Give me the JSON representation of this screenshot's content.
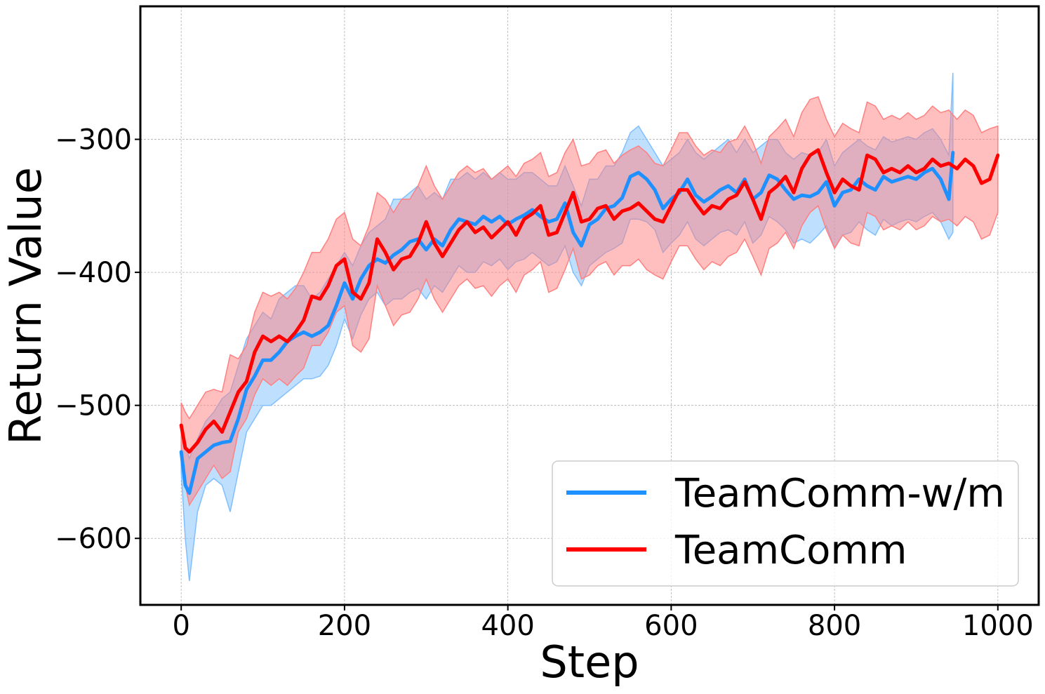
{
  "chart_data": {
    "type": "line",
    "title": "",
    "xlabel": "Step",
    "ylabel": "Return Value",
    "xlim": [
      -50,
      1050
    ],
    "ylim": [
      -650,
      -200
    ],
    "x_ticks": [
      0,
      200,
      400,
      600,
      800,
      1000
    ],
    "x_tick_labels": [
      "0",
      "200",
      "400",
      "600",
      "800",
      "1000"
    ],
    "y_ticks": [
      -600,
      -500,
      -400,
      -300
    ],
    "y_tick_labels": [
      "−600",
      "−500",
      "−400",
      "−300"
    ],
    "grid": true,
    "legend_position": "lower-right",
    "series": [
      {
        "name": "TeamComm-w/m",
        "color": "#1e90ff",
        "band_color": "#7fbfff",
        "x": [
          0,
          5,
          10,
          20,
          30,
          40,
          50,
          60,
          70,
          80,
          90,
          100,
          110,
          120,
          130,
          140,
          150,
          160,
          170,
          180,
          190,
          200,
          210,
          220,
          230,
          240,
          250,
          260,
          270,
          280,
          290,
          300,
          310,
          320,
          330,
          340,
          350,
          360,
          370,
          380,
          390,
          400,
          410,
          420,
          430,
          440,
          450,
          460,
          470,
          480,
          490,
          500,
          510,
          520,
          530,
          540,
          550,
          560,
          570,
          580,
          590,
          600,
          610,
          620,
          630,
          640,
          650,
          660,
          670,
          680,
          690,
          700,
          710,
          720,
          730,
          740,
          750,
          760,
          770,
          780,
          790,
          800,
          810,
          820,
          830,
          840,
          850,
          860,
          870,
          880,
          890,
          900,
          910,
          920,
          930,
          940,
          945
        ],
        "mean": [
          -535,
          -560,
          -566,
          -540,
          -535,
          -530,
          -528,
          -527,
          -510,
          -488,
          -478,
          -466,
          -466,
          -460,
          -452,
          -448,
          -445,
          -448,
          -445,
          -440,
          -425,
          -408,
          -420,
          -405,
          -395,
          -390,
          -393,
          -387,
          -383,
          -377,
          -375,
          -383,
          -375,
          -380,
          -368,
          -360,
          -362,
          -364,
          -358,
          -362,
          -358,
          -364,
          -360,
          -357,
          -353,
          -358,
          -362,
          -360,
          -348,
          -370,
          -380,
          -364,
          -360,
          -352,
          -350,
          -344,
          -328,
          -325,
          -330,
          -338,
          -352,
          -345,
          -340,
          -330,
          -342,
          -347,
          -343,
          -338,
          -335,
          -340,
          -330,
          -345,
          -340,
          -327,
          -330,
          -338,
          -345,
          -342,
          -343,
          -340,
          -332,
          -350,
          -340,
          -338,
          -330,
          -335,
          -338,
          -328,
          -332,
          -330,
          -328,
          -330,
          -325,
          -322,
          -330,
          -345,
          -310
        ],
        "upper": [
          -520,
          -530,
          -540,
          -525,
          -512,
          -505,
          -495,
          -490,
          -470,
          -450,
          -440,
          -430,
          -435,
          -420,
          -415,
          -410,
          -410,
          -420,
          -415,
          -405,
          -395,
          -385,
          -395,
          -380,
          -370,
          -365,
          -360,
          -345,
          -345,
          -340,
          -335,
          -345,
          -340,
          -345,
          -330,
          -330,
          -325,
          -330,
          -325,
          -330,
          -325,
          -330,
          -330,
          -325,
          -325,
          -330,
          -335,
          -335,
          -320,
          -335,
          -350,
          -330,
          -330,
          -320,
          -320,
          -310,
          -295,
          -290,
          -300,
          -310,
          -320,
          -315,
          -310,
          -300,
          -310,
          -315,
          -310,
          -305,
          -300,
          -310,
          -300,
          -310,
          -305,
          -300,
          -300,
          -310,
          -315,
          -310,
          -312,
          -310,
          -300,
          -320,
          -310,
          -305,
          -300,
          -305,
          -308,
          -298,
          -302,
          -300,
          -298,
          -300,
          -295,
          -292,
          -300,
          -312,
          -250
        ],
        "lower": [
          -550,
          -600,
          -632,
          -580,
          -560,
          -555,
          -560,
          -580,
          -550,
          -520,
          -510,
          -500,
          -500,
          -495,
          -490,
          -485,
          -480,
          -480,
          -478,
          -470,
          -455,
          -435,
          -450,
          -432,
          -420,
          -415,
          -425,
          -420,
          -420,
          -415,
          -412,
          -420,
          -410,
          -415,
          -405,
          -395,
          -400,
          -400,
          -392,
          -395,
          -390,
          -398,
          -392,
          -390,
          -385,
          -390,
          -395,
          -392,
          -380,
          -400,
          -410,
          -395,
          -390,
          -385,
          -382,
          -378,
          -360,
          -360,
          -362,
          -368,
          -385,
          -378,
          -372,
          -362,
          -375,
          -380,
          -375,
          -370,
          -368,
          -372,
          -362,
          -378,
          -372,
          -358,
          -362,
          -368,
          -378,
          -375,
          -378,
          -372,
          -365,
          -382,
          -372,
          -370,
          -362,
          -368,
          -372,
          -360,
          -365,
          -362,
          -360,
          -362,
          -358,
          -355,
          -362,
          -375,
          -370
        ]
      },
      {
        "name": "TeamComm",
        "color": "#ff0000",
        "band_color": "#ff8080",
        "x": [
          0,
          5,
          10,
          20,
          30,
          40,
          50,
          60,
          70,
          80,
          90,
          100,
          110,
          120,
          130,
          140,
          150,
          160,
          170,
          180,
          190,
          200,
          210,
          220,
          230,
          240,
          250,
          260,
          270,
          280,
          290,
          300,
          310,
          320,
          330,
          340,
          350,
          360,
          370,
          380,
          390,
          400,
          410,
          420,
          430,
          440,
          450,
          460,
          470,
          480,
          490,
          500,
          510,
          520,
          530,
          540,
          550,
          560,
          570,
          580,
          590,
          600,
          610,
          620,
          630,
          640,
          650,
          660,
          670,
          680,
          690,
          700,
          710,
          720,
          730,
          740,
          750,
          760,
          770,
          780,
          790,
          800,
          810,
          820,
          830,
          840,
          850,
          860,
          870,
          880,
          890,
          900,
          910,
          920,
          930,
          940,
          950,
          960,
          970,
          980,
          990,
          1000
        ],
        "mean": [
          -515,
          -532,
          -535,
          -528,
          -518,
          -512,
          -520,
          -505,
          -490,
          -482,
          -460,
          -448,
          -452,
          -448,
          -452,
          -445,
          -436,
          -418,
          -420,
          -410,
          -395,
          -390,
          -415,
          -420,
          -408,
          -375,
          -385,
          -398,
          -390,
          -388,
          -378,
          -362,
          -378,
          -388,
          -378,
          -368,
          -362,
          -370,
          -366,
          -374,
          -368,
          -362,
          -372,
          -360,
          -356,
          -350,
          -372,
          -370,
          -355,
          -340,
          -362,
          -360,
          -352,
          -350,
          -360,
          -354,
          -352,
          -348,
          -354,
          -360,
          -362,
          -350,
          -338,
          -338,
          -348,
          -356,
          -350,
          -352,
          -345,
          -342,
          -332,
          -345,
          -360,
          -340,
          -335,
          -328,
          -340,
          -322,
          -312,
          -308,
          -325,
          -340,
          -330,
          -335,
          -338,
          -312,
          -315,
          -325,
          -322,
          -325,
          -320,
          -325,
          -322,
          -315,
          -320,
          -318,
          -322,
          -315,
          -320,
          -333,
          -330,
          -312
        ],
        "upper": [
          -498,
          -505,
          -510,
          -500,
          -490,
          -488,
          -490,
          -462,
          -465,
          -455,
          -430,
          -415,
          -418,
          -415,
          -420,
          -412,
          -400,
          -385,
          -385,
          -375,
          -360,
          -355,
          -375,
          -380,
          -365,
          -340,
          -345,
          -355,
          -345,
          -345,
          -335,
          -320,
          -335,
          -345,
          -335,
          -325,
          -320,
          -325,
          -322,
          -330,
          -325,
          -320,
          -328,
          -318,
          -315,
          -310,
          -328,
          -325,
          -310,
          -300,
          -320,
          -318,
          -310,
          -308,
          -318,
          -312,
          -308,
          -305,
          -310,
          -318,
          -320,
          -308,
          -295,
          -295,
          -305,
          -312,
          -308,
          -310,
          -302,
          -300,
          -290,
          -302,
          -318,
          -298,
          -292,
          -285,
          -298,
          -280,
          -270,
          -268,
          -285,
          -298,
          -288,
          -292,
          -295,
          -272,
          -275,
          -285,
          -282,
          -285,
          -280,
          -285,
          -282,
          -275,
          -280,
          -278,
          -285,
          -278,
          -282,
          -295,
          -292,
          -290
        ],
        "lower": [
          -532,
          -560,
          -575,
          -565,
          -555,
          -545,
          -555,
          -550,
          -520,
          -510,
          -492,
          -480,
          -485,
          -480,
          -485,
          -478,
          -472,
          -455,
          -455,
          -445,
          -430,
          -425,
          -455,
          -460,
          -450,
          -410,
          -425,
          -440,
          -432,
          -430,
          -420,
          -405,
          -420,
          -430,
          -420,
          -410,
          -405,
          -412,
          -410,
          -418,
          -410,
          -405,
          -415,
          -402,
          -398,
          -392,
          -415,
          -412,
          -398,
          -382,
          -405,
          -402,
          -395,
          -392,
          -402,
          -395,
          -395,
          -390,
          -398,
          -402,
          -405,
          -392,
          -380,
          -380,
          -390,
          -398,
          -392,
          -395,
          -388,
          -385,
          -375,
          -388,
          -402,
          -382,
          -378,
          -370,
          -382,
          -365,
          -355,
          -350,
          -368,
          -382,
          -372,
          -378,
          -380,
          -355,
          -358,
          -368,
          -365,
          -368,
          -362,
          -368,
          -365,
          -358,
          -362,
          -360,
          -365,
          -358,
          -362,
          -375,
          -372,
          -355
        ]
      }
    ]
  }
}
